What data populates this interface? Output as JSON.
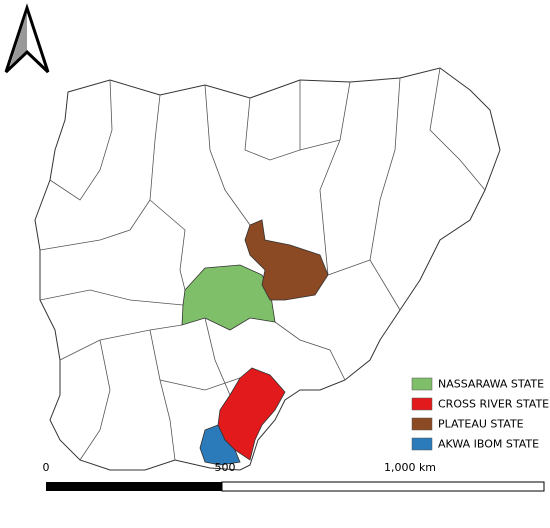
{
  "legend": {
    "items": [
      {
        "label": "NASSARAWA STATE",
        "color": "#7fbf6a"
      },
      {
        "label": "CROSS RIVER STATE",
        "color": "#e31a1c"
      },
      {
        "label": "PLATEAU STATE",
        "color": "#8b4a24"
      },
      {
        "label": "AKWA IBOM STATE",
        "color": "#2b7bba"
      }
    ]
  },
  "scale_bar": {
    "labels": [
      "0",
      "500",
      "1,000 km"
    ]
  }
}
